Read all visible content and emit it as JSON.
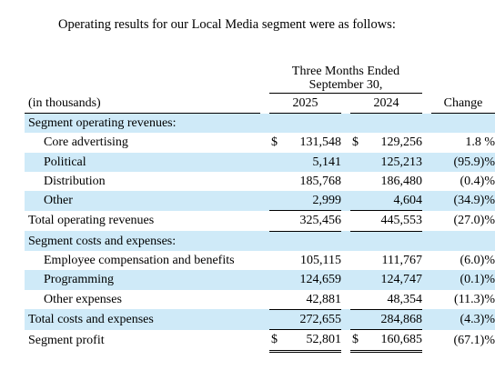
{
  "intro": "Operating results for our Local Media segment were as follows:",
  "header": {
    "period_line1": "Three Months Ended",
    "period_line2": "September 30,",
    "units": "(in thousands)",
    "col_2025": "2025",
    "col_2024": "2024",
    "col_change": "Change"
  },
  "rows": [
    {
      "label": "Segment operating revenues:",
      "cur25": "",
      "v25": "",
      "cur24": "",
      "v24": "",
      "chg": ""
    },
    {
      "label": "Core advertising",
      "cur25": "$",
      "v25": "131,548",
      "cur24": "$",
      "v24": "129,256",
      "chg": "1.8 %"
    },
    {
      "label": "Political",
      "cur25": "",
      "v25": "5,141",
      "cur24": "",
      "v24": "125,213",
      "chg": "(95.9)%"
    },
    {
      "label": "Distribution",
      "cur25": "",
      "v25": "185,768",
      "cur24": "",
      "v24": "186,480",
      "chg": "(0.4)%"
    },
    {
      "label": "Other",
      "cur25": "",
      "v25": "2,999",
      "cur24": "",
      "v24": "4,604",
      "chg": "(34.9)%"
    },
    {
      "label": "Total operating revenues",
      "cur25": "",
      "v25": "325,456",
      "cur24": "",
      "v24": "445,553",
      "chg": "(27.0)%"
    },
    {
      "label": "Segment costs and expenses:",
      "cur25": "",
      "v25": "",
      "cur24": "",
      "v24": "",
      "chg": ""
    },
    {
      "label": "Employee compensation and benefits",
      "cur25": "",
      "v25": "105,115",
      "cur24": "",
      "v24": "111,767",
      "chg": "(6.0)%"
    },
    {
      "label": "Programming",
      "cur25": "",
      "v25": "124,659",
      "cur24": "",
      "v24": "124,747",
      "chg": "(0.1)%"
    },
    {
      "label": "Other expenses",
      "cur25": "",
      "v25": "42,881",
      "cur24": "",
      "v24": "48,354",
      "chg": "(11.3)%"
    },
    {
      "label": "Total costs and expenses",
      "cur25": "",
      "v25": "272,655",
      "cur24": "",
      "v24": "284,868",
      "chg": "(4.3)%"
    },
    {
      "label": "Segment profit",
      "cur25": "$",
      "v25": "52,801",
      "cur24": "$",
      "v24": "160,685",
      "chg": "(67.1)%"
    }
  ],
  "colors": {
    "row_shade": "#cfeaf8",
    "text": "#000000"
  }
}
